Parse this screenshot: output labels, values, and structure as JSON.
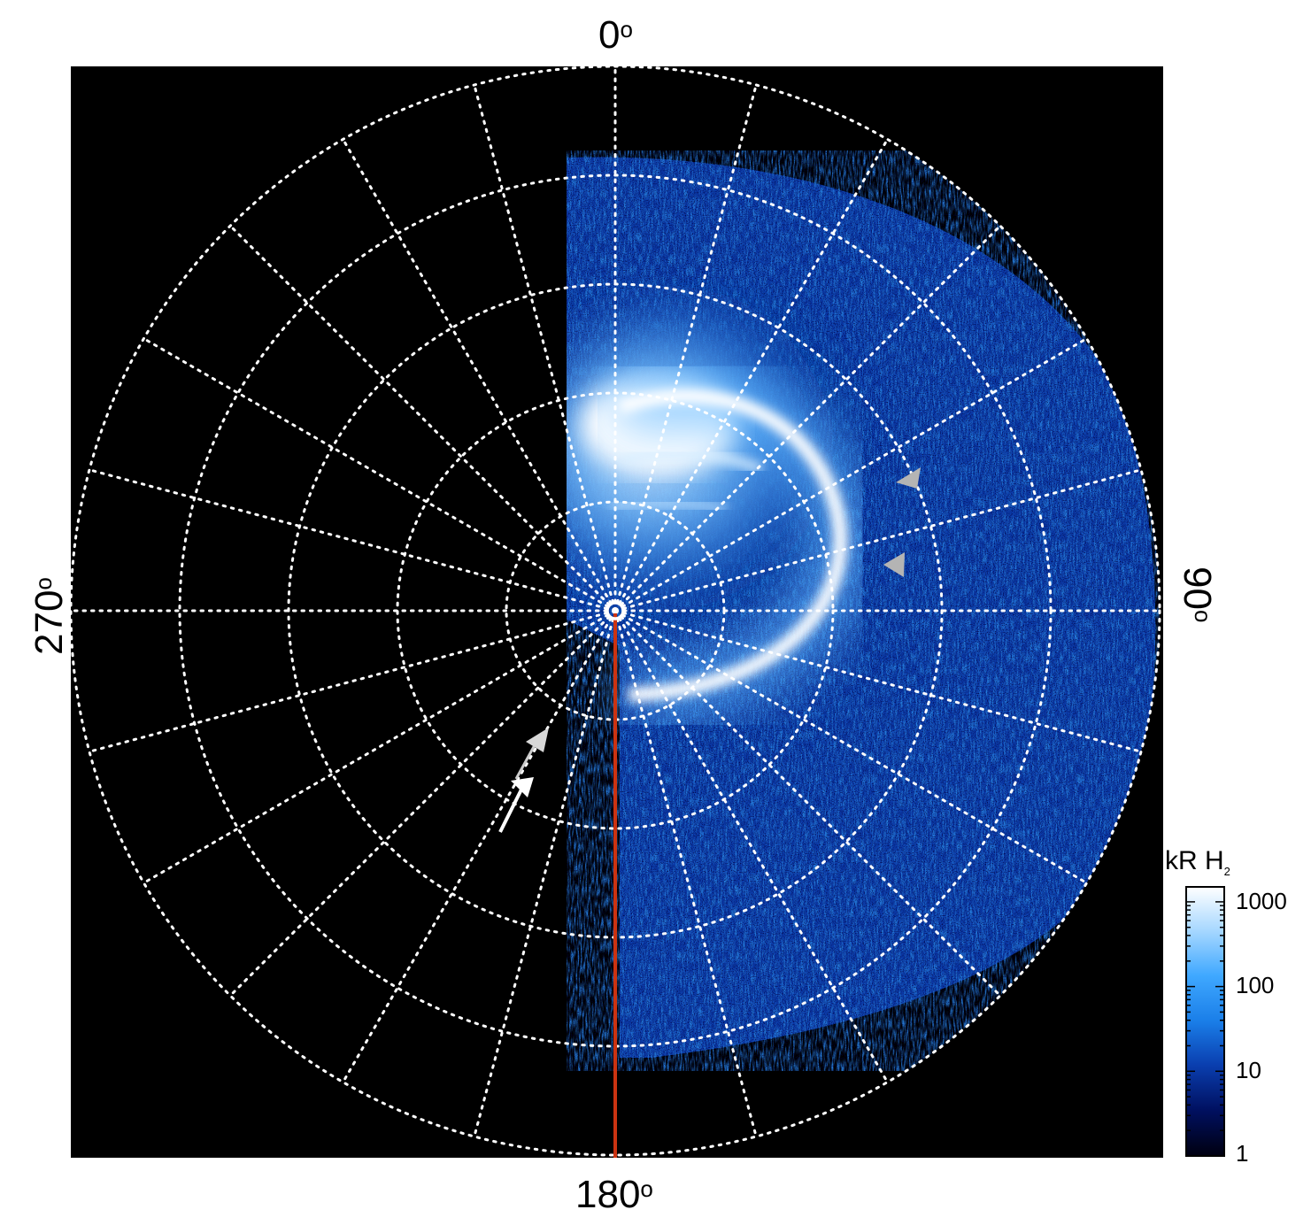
{
  "labels": {
    "top": "0",
    "bottom": "180",
    "left": "270",
    "right": "90",
    "deg_symbol": "o"
  },
  "colorbar": {
    "unit": "kR H",
    "unit_subscript": "2",
    "ticks": [
      "1000",
      "100",
      "10",
      "1"
    ],
    "tick_values": [
      1000,
      100,
      10,
      1
    ],
    "scale": "log",
    "colormap": [
      "#000010",
      "#001060",
      "#0a3fb0",
      "#1a7ee8",
      "#3fa8ff",
      "#a8d8ff",
      "#ffffff"
    ]
  },
  "chart_data": {
    "type": "heatmap",
    "projection": "polar",
    "azimuth_labels": [
      "0°",
      "90°",
      "180°",
      "270°"
    ],
    "azimuth_grid_step_deg": 15,
    "radial_rings": 5,
    "grid": "dotted white",
    "colorbar_label": "kR H₂",
    "colorbar_range": [
      1,
      1000
    ],
    "colorbar_scale": "log",
    "meridian_line": {
      "azimuth_deg": 180,
      "color": "#cc3311"
    },
    "markers": [
      {
        "kind": "arrow",
        "color": "#ffffff",
        "count": 2
      },
      {
        "kind": "arrowhead",
        "color": "#b0b0b0",
        "count": 2
      }
    ]
  },
  "colors": {
    "background": "#000000",
    "grid": "#ffffff",
    "meridian": "#cc3311",
    "oval_core": "#ffffff",
    "emission_mid": "#1a7ee8"
  }
}
